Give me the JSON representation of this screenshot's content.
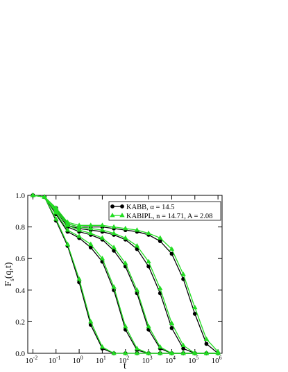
{
  "chart_data": {
    "type": "line",
    "xlabel": "t",
    "ylabel": {
      "main": "F",
      "sub": "s",
      "rest": "(q,t)"
    },
    "xscale": "log",
    "x": [
      0.01,
      0.0316,
      0.1,
      0.316,
      1,
      3.16,
      10,
      31.6,
      100,
      316,
      1000,
      3162,
      10000,
      31623,
      100000,
      316228,
      1000000
    ],
    "xlim": [
      0.006,
      1500000
    ],
    "ylim": [
      0,
      1
    ],
    "xticks": [
      {
        "value": 0.01,
        "label": "10",
        "exponent": "-2"
      },
      {
        "value": 0.1,
        "label": "10",
        "exponent": "-1"
      },
      {
        "value": 1,
        "label": "10",
        "exponent": "0"
      },
      {
        "value": 10,
        "label": "10",
        "exponent": "1"
      },
      {
        "value": 100,
        "label": "10",
        "exponent": "2"
      },
      {
        "value": 1000,
        "label": "10",
        "exponent": "3"
      },
      {
        "value": 10000,
        "label": "10",
        "exponent": "4"
      },
      {
        "value": 100000,
        "label": "10",
        "exponent": "5"
      },
      {
        "value": 1000000,
        "label": "10",
        "exponent": "6"
      }
    ],
    "yticks": [
      {
        "value": 0,
        "label": "0.0"
      },
      {
        "value": 0.2,
        "label": "0.2"
      },
      {
        "value": 0.4,
        "label": "0.4"
      },
      {
        "value": 0.6,
        "label": "0.6"
      },
      {
        "value": 0.8,
        "label": "0.8"
      },
      {
        "value": 1,
        "label": "1.0"
      }
    ],
    "legend": "upper right",
    "series": [
      {
        "name": "KABB, α = 14.5",
        "color": "#000000",
        "marker": "circle",
        "values": [
          1.0,
          0.99,
          0.84,
          0.68,
          0.45,
          0.18,
          0.03,
          0,
          0,
          0,
          0,
          0,
          0,
          0,
          0,
          0,
          0
        ]
      },
      {
        "color": "#000000",
        "marker": "circle",
        "values": [
          1.0,
          0.99,
          0.88,
          0.77,
          0.73,
          0.67,
          0.58,
          0.4,
          0.15,
          0.02,
          0,
          0,
          0,
          0,
          0,
          0,
          0
        ]
      },
      {
        "color": "#000000",
        "marker": "circle",
        "values": [
          1.0,
          0.99,
          0.9,
          0.8,
          0.77,
          0.75,
          0.72,
          0.65,
          0.55,
          0.38,
          0.15,
          0.03,
          0,
          0,
          0,
          0,
          0
        ]
      },
      {
        "color": "#000000",
        "marker": "circle",
        "values": [
          1.0,
          0.99,
          0.91,
          0.81,
          0.79,
          0.78,
          0.77,
          0.75,
          0.72,
          0.66,
          0.55,
          0.38,
          0.16,
          0.03,
          0,
          0,
          0
        ]
      },
      {
        "color": "#000000",
        "marker": "circle",
        "values": [
          1.0,
          0.99,
          0.92,
          0.82,
          0.8,
          0.8,
          0.8,
          0.79,
          0.78,
          0.77,
          0.75,
          0.71,
          0.63,
          0.47,
          0.25,
          0.06,
          0
        ]
      },
      {
        "name": "KABIPL, n = 14.71, A = 2.08",
        "color": "#22dd22",
        "marker": "triangle",
        "values": [
          1.0,
          0.99,
          0.85,
          0.69,
          0.47,
          0.2,
          0.04,
          0,
          0,
          0,
          0,
          0,
          0,
          0,
          0,
          0,
          0
        ]
      },
      {
        "color": "#22dd22",
        "marker": "triangle",
        "values": [
          1.0,
          0.99,
          0.89,
          0.78,
          0.74,
          0.69,
          0.6,
          0.42,
          0.17,
          0.03,
          0,
          0,
          0,
          0,
          0,
          0,
          0
        ]
      },
      {
        "color": "#22dd22",
        "marker": "triangle",
        "values": [
          1.0,
          0.99,
          0.9,
          0.81,
          0.78,
          0.76,
          0.73,
          0.67,
          0.57,
          0.4,
          0.17,
          0.04,
          0,
          0,
          0,
          0,
          0
        ]
      },
      {
        "color": "#22dd22",
        "marker": "triangle",
        "values": [
          1.0,
          0.99,
          0.91,
          0.82,
          0.8,
          0.79,
          0.78,
          0.76,
          0.73,
          0.68,
          0.58,
          0.41,
          0.19,
          0.05,
          0,
          0,
          0
        ]
      },
      {
        "color": "#22dd22",
        "marker": "triangle",
        "values": [
          1.0,
          0.99,
          0.92,
          0.83,
          0.81,
          0.81,
          0.81,
          0.8,
          0.79,
          0.78,
          0.76,
          0.73,
          0.66,
          0.5,
          0.29,
          0.09,
          0.01
        ]
      }
    ]
  }
}
